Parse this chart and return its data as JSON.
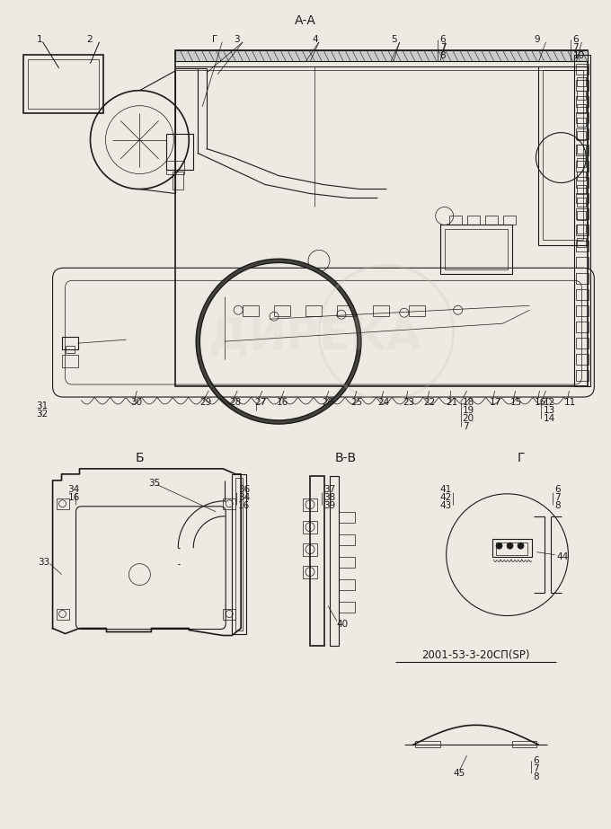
{
  "bg_color": "#ede9e3",
  "line_color": "#1a1a1a",
  "fig_width": 6.8,
  "fig_height": 9.23,
  "section_A_label": "А-А",
  "section_B_label": "Б",
  "section_VV_label": "В-В",
  "section_G_label": "Г",
  "part_number_ref": "2001-53-3-20СП(SP)",
  "label_fontsize": 7.5,
  "section_fontsize": 10,
  "ref_fontsize": 8.5
}
